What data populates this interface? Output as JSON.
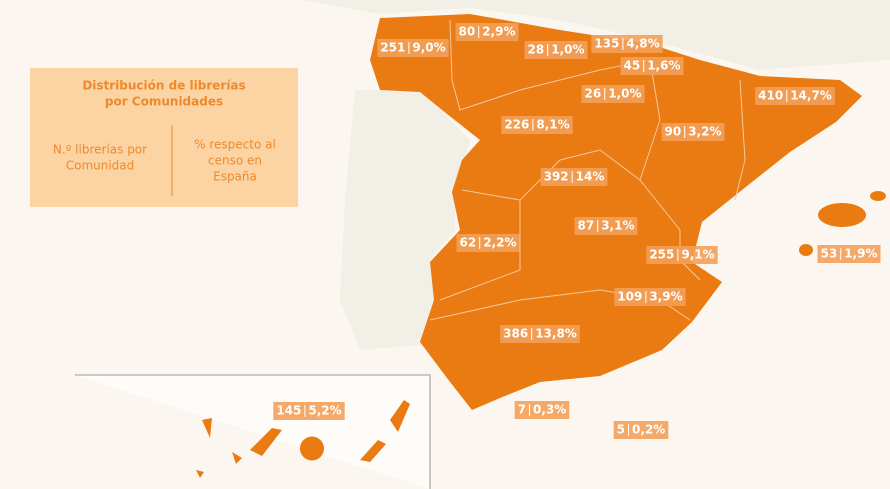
{
  "legend": {
    "title": [
      "Distribución de librerías",
      "por Comunidades"
    ],
    "left": [
      "N.º librerías por",
      "Comunidad"
    ],
    "right": [
      "% respecto al",
      "censo en",
      "España"
    ]
  },
  "regions": [
    {
      "count": "251",
      "share": "9,0%"
    },
    {
      "count": "80",
      "share": "2,9%"
    },
    {
      "count": "28",
      "share": "1,0%"
    },
    {
      "count": "135",
      "share": "4,8%"
    },
    {
      "count": "45",
      "share": "1,6%"
    },
    {
      "count": "26",
      "share": "1,0%"
    },
    {
      "count": "410",
      "share": "14,7%"
    },
    {
      "count": "226",
      "share": "8,1%"
    },
    {
      "count": "90",
      "share": "3,2%"
    },
    {
      "count": "392",
      "share": "14%"
    },
    {
      "count": "87",
      "share": "3,1%"
    },
    {
      "count": "62",
      "share": "2,2%"
    },
    {
      "count": "255",
      "share": "9,1%"
    },
    {
      "count": "53",
      "share": "1,9%"
    },
    {
      "count": "109",
      "share": "3,9%"
    },
    {
      "count": "386",
      "share": "13,8%"
    },
    {
      "count": "145",
      "share": "5,2%"
    },
    {
      "count": "7",
      "share": "0,3%"
    },
    {
      "count": "5",
      "share": "0,2%"
    }
  ]
}
